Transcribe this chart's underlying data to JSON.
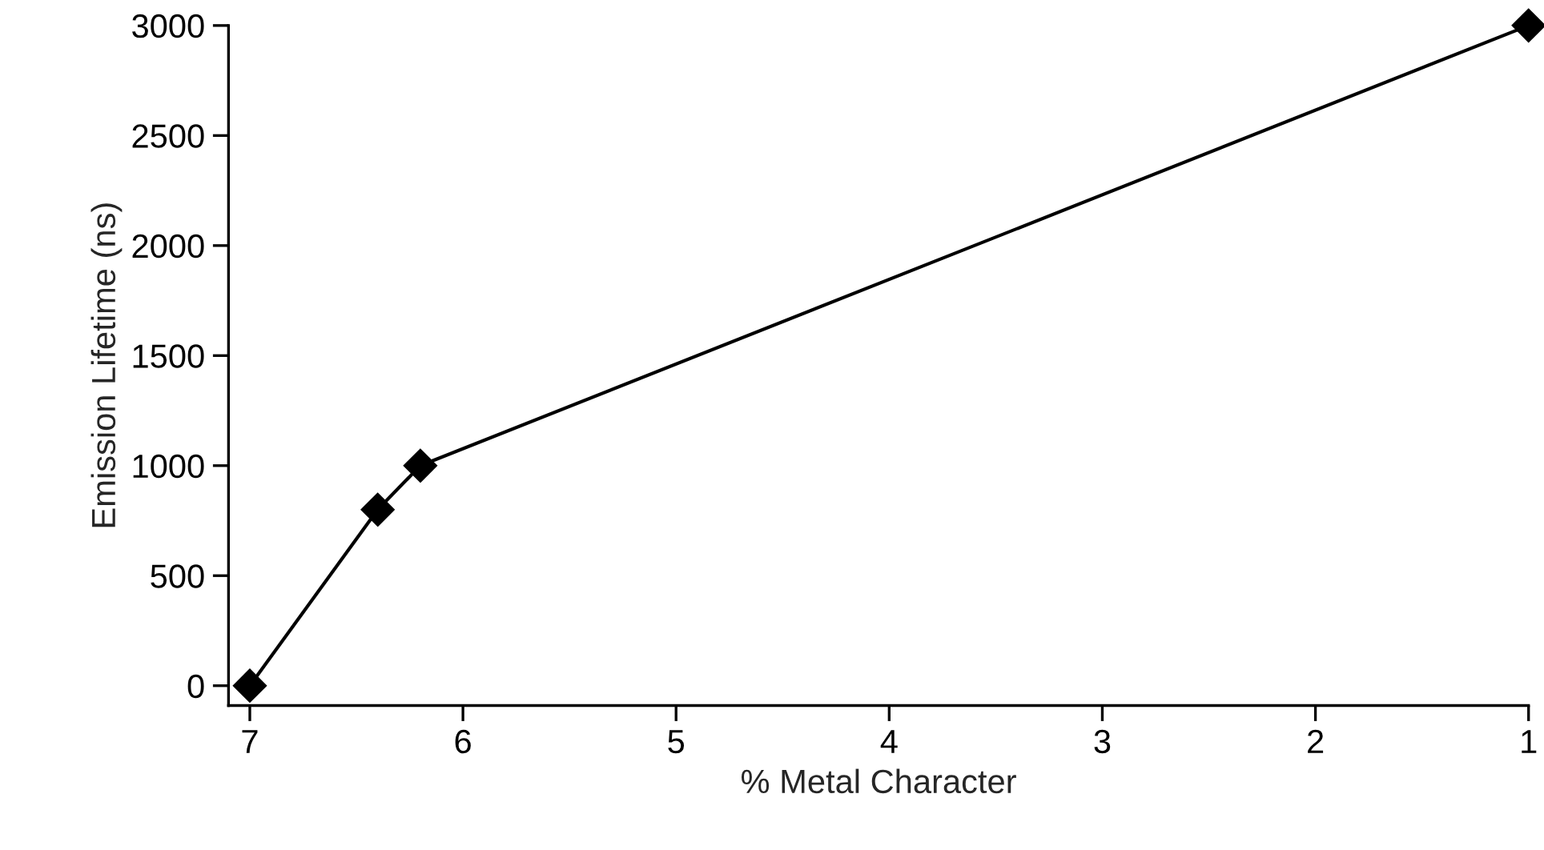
{
  "chart_data": {
    "type": "line",
    "xlabel": "% Metal Character",
    "ylabel": "Emission Lifetime (ns)",
    "x": [
      7,
      6.4,
      6.2,
      1
    ],
    "series": [
      {
        "color": "#000000",
        "values": [
          0,
          800,
          1000,
          3000
        ]
      }
    ],
    "xlim": [
      7.1,
      1
    ],
    "ylim": [
      -90,
      3000
    ],
    "xticks": [
      7,
      6,
      5,
      4,
      3,
      2,
      1
    ],
    "yticks": [
      0,
      500,
      1000,
      1500,
      2000,
      2500,
      3000
    ],
    "marker": "diamond",
    "line_style": "solid",
    "grid": false,
    "legend": false
  }
}
